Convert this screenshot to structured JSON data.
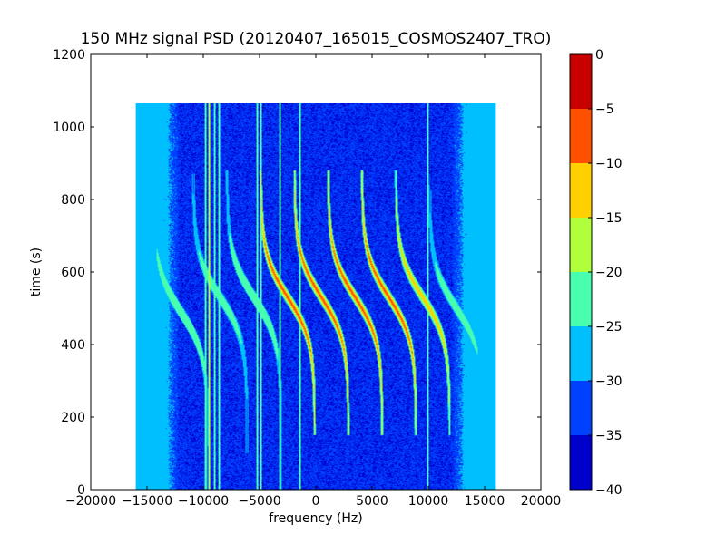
{
  "chart_data": {
    "type": "heatmap",
    "title": "150 MHz signal PSD (20120407_165015_COSMOS2407_TRO)",
    "xlabel": "frequency (Hz)",
    "ylabel": "time (s)",
    "xlim": [
      -20000,
      20000
    ],
    "ylim": [
      0,
      1200
    ],
    "xticks": [
      -20000,
      -15000,
      -10000,
      -5000,
      0,
      5000,
      10000,
      15000,
      20000
    ],
    "xtick_labels": [
      "−20000",
      "−15000",
      "−10000",
      "−5000",
      "0",
      "5000",
      "10000",
      "15000",
      "20000"
    ],
    "yticks": [
      0,
      200,
      400,
      600,
      800,
      1000,
      1200
    ],
    "ytick_labels": [
      "0",
      "200",
      "400",
      "600",
      "800",
      "1000",
      "1200"
    ],
    "data_extent": {
      "x": [
        -16000,
        16000
      ],
      "y": [
        0,
        1065
      ]
    },
    "colorbar": {
      "levels": [
        -40,
        -35,
        -30,
        -25,
        -20,
        -15,
        -10,
        -5,
        0
      ],
      "tick_labels": [
        "0",
        "−5",
        "−10",
        "−15",
        "−20",
        "−25",
        "−30",
        "−35",
        "−40"
      ],
      "colors": [
        "#0000cd",
        "#0040ff",
        "#00bfff",
        "#48ffb0",
        "#b0ff3c",
        "#ffd000",
        "#ff5000",
        "#c80000"
      ]
    },
    "background_level_dB": -27.5,
    "vertical_lines_hz": [
      -9800,
      -9500,
      -9000,
      -8600,
      -5200,
      -4900,
      -3200,
      -1400,
      9950
    ],
    "doppler_curves": [
      {
        "center_hz": -12000,
        "t0_s": 490,
        "max_level_dB": -20,
        "t_range_s": [
          0,
          800
        ]
      },
      {
        "center_hz": -8500,
        "t0_s": 530,
        "max_level_dB": -22,
        "t_range_s": [
          100,
          870
        ]
      },
      {
        "center_hz": -5500,
        "t0_s": 530,
        "max_level_dB": -20,
        "t_range_s": [
          0,
          880
        ]
      },
      {
        "center_hz": -2500,
        "t0_s": 530,
        "max_level_dB": -5,
        "t_range_s": [
          150,
          880
        ]
      },
      {
        "center_hz": 500,
        "t0_s": 530,
        "max_level_dB": -5,
        "t_range_s": [
          150,
          880
        ]
      },
      {
        "center_hz": 3500,
        "t0_s": 530,
        "max_level_dB": -5,
        "t_range_s": [
          150,
          880
        ]
      },
      {
        "center_hz": 6500,
        "t0_s": 530,
        "max_level_dB": -5,
        "t_range_s": [
          150,
          880
        ]
      },
      {
        "center_hz": 9500,
        "t0_s": 530,
        "max_level_dB": -10,
        "t_range_s": [
          150,
          880
        ]
      },
      {
        "center_hz": 12500,
        "t0_s": 500,
        "max_level_dB": -22,
        "t_range_s": [
          150,
          870
        ]
      }
    ]
  }
}
